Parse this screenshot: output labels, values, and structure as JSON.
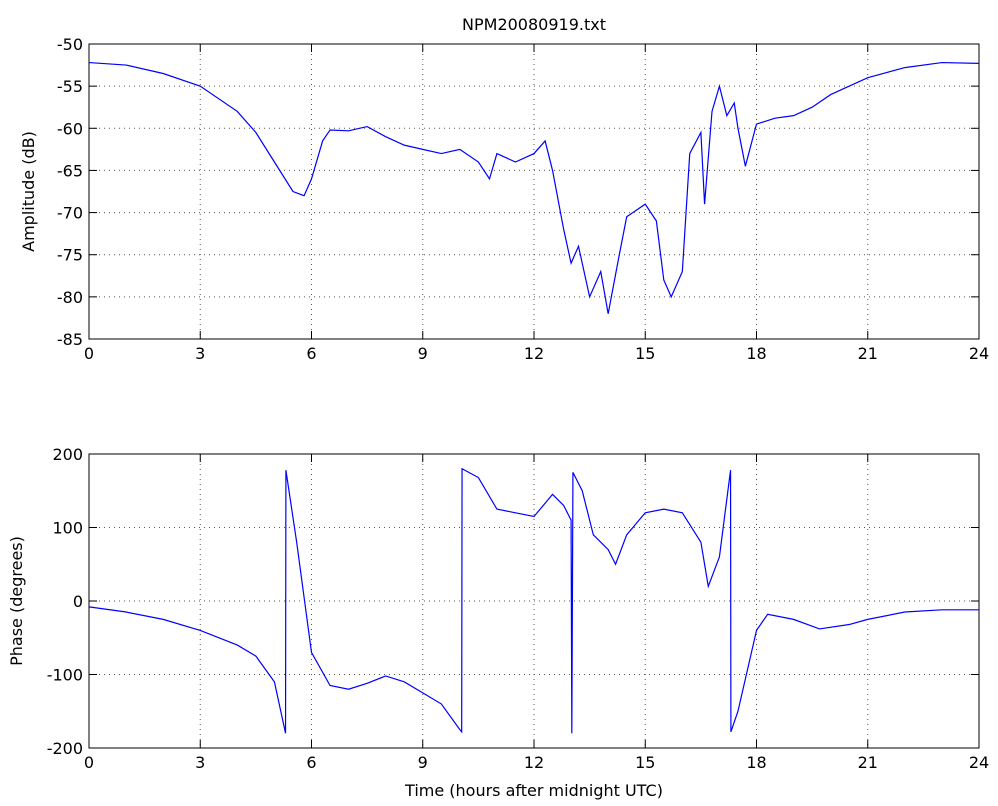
{
  "chart_data": [
    {
      "type": "line",
      "title": "NPM20080919.txt",
      "ylabel": "Amplitude (dB)",
      "x": [
        0,
        1,
        2,
        3,
        4,
        4.5,
        5,
        5.5,
        5.8,
        6,
        6.3,
        6.5,
        7,
        7.5,
        8,
        8.5,
        9,
        9.5,
        10,
        10.5,
        10.8,
        11,
        11.5,
        12,
        12.3,
        12.5,
        12.8,
        13,
        13.2,
        13.5,
        13.8,
        14,
        14.3,
        14.5,
        15,
        15.3,
        15.5,
        15.7,
        16,
        16.2,
        16.5,
        16.6,
        16.8,
        17,
        17.2,
        17.4,
        17.5,
        17.7,
        18,
        18.5,
        19,
        19.5,
        20,
        21,
        22,
        23,
        24
      ],
      "series": [
        {
          "color": "#0000ff",
          "values": [
            -52.2,
            -52.5,
            -53.5,
            -55,
            -58,
            -60.5,
            -64,
            -67.5,
            -68,
            -66,
            -61.5,
            -60.2,
            -60.3,
            -59.8,
            -61,
            -62,
            -62.5,
            -63,
            -62.5,
            -64,
            -66,
            -63,
            -64,
            -63,
            -61.5,
            -65,
            -72,
            -76,
            -74,
            -80,
            -77,
            -82,
            -75,
            -70.5,
            -69,
            -71,
            -78,
            -80,
            -77,
            -63,
            -60.5,
            -69,
            -58,
            -55,
            -58.5,
            -57,
            -60,
            -64.5,
            -59.5,
            -58.8,
            -58.5,
            -57.5,
            -56,
            -54,
            -52.8,
            -52.2,
            -52.3
          ]
        }
      ],
      "xlim": [
        0,
        24
      ],
      "ylim": [
        -85,
        -50
      ],
      "xticks": [
        0,
        3,
        6,
        9,
        12,
        15,
        18,
        21,
        24
      ],
      "yticks": [
        -85,
        -80,
        -75,
        -70,
        -65,
        -60,
        -55,
        -50
      ],
      "grid": true
    },
    {
      "type": "line",
      "ylabel": "Phase (degrees)",
      "xlabel": "Time (hours after midnight UTC)",
      "x": [
        0,
        1,
        2,
        3,
        4,
        4.5,
        5,
        5.3,
        5.31,
        5.6,
        6,
        6.5,
        7,
        7.5,
        8,
        8.5,
        9,
        9.5,
        10,
        10.05,
        10.06,
        10.5,
        11,
        11.5,
        12,
        12.5,
        12.8,
        13,
        13.02,
        13.05,
        13.3,
        13.6,
        14,
        14.2,
        14.5,
        15,
        15.5,
        16,
        16.5,
        16.7,
        17,
        17.3,
        17.31,
        17.5,
        18,
        18.3,
        19,
        19.7,
        20.5,
        21,
        22,
        23,
        24
      ],
      "series": [
        {
          "color": "#0000ff",
          "values": [
            -8,
            -15,
            -25,
            -40,
            -60,
            -75,
            -110,
            -180,
            178,
            80,
            -70,
            -115,
            -120,
            -112,
            -102,
            -110,
            -125,
            -140,
            -175,
            -178,
            180,
            168,
            125,
            120,
            115,
            145,
            130,
            110,
            -180,
            175,
            150,
            90,
            70,
            50,
            90,
            120,
            125,
            120,
            80,
            20,
            60,
            178,
            -178,
            -150,
            -40,
            -18,
            -25,
            -38,
            -32,
            -25,
            -15,
            -12,
            -12
          ]
        }
      ],
      "xlim": [
        0,
        24
      ],
      "ylim": [
        -200,
        200
      ],
      "xticks": [
        0,
        3,
        6,
        9,
        12,
        15,
        18,
        21,
        24
      ],
      "yticks": [
        -200,
        -100,
        0,
        100,
        200
      ],
      "grid": true
    }
  ]
}
